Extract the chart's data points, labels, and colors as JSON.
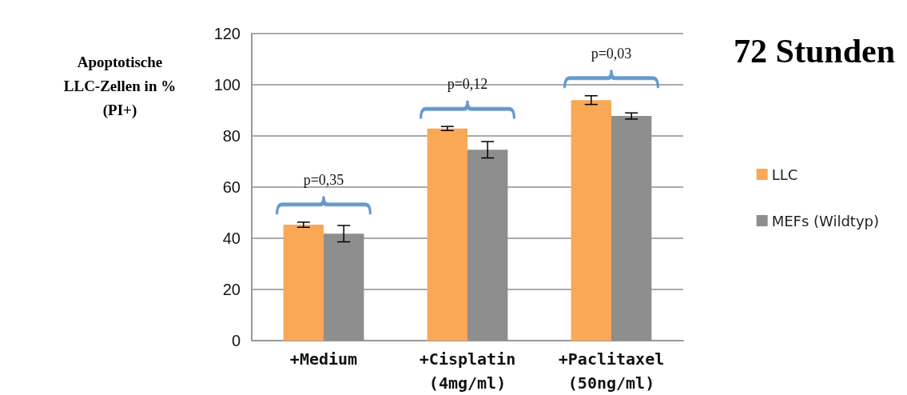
{
  "chart_data": {
    "type": "bar",
    "title": "72 Stunden",
    "ylabel": "Apoptotische\nLLC-Zellen in %\n(PI+)",
    "categories": [
      "+Medium",
      "+Cisplatin\n(4mg/ml)",
      "+Paclitaxel\n(50ng/ml)"
    ],
    "series": [
      {
        "name": "LLC",
        "color": "#f9a856",
        "values": [
          45.3,
          82.9,
          94.0
        ],
        "errors": [
          1,
          0.8,
          1.7
        ]
      },
      {
        "name": "MEFs (Wildtyp)",
        "color": "#8e8e8e",
        "values": [
          41.8,
          74.6,
          87.8
        ],
        "errors": [
          3.2,
          3.2,
          1.2
        ]
      }
    ],
    "ylim": [
      0,
      120
    ],
    "yticks": [
      0,
      20,
      40,
      60,
      80,
      100,
      120
    ],
    "grid": "y",
    "legend": "right",
    "annotations": [
      "p=0,35",
      "p=0,12",
      "p=0,03"
    ]
  }
}
